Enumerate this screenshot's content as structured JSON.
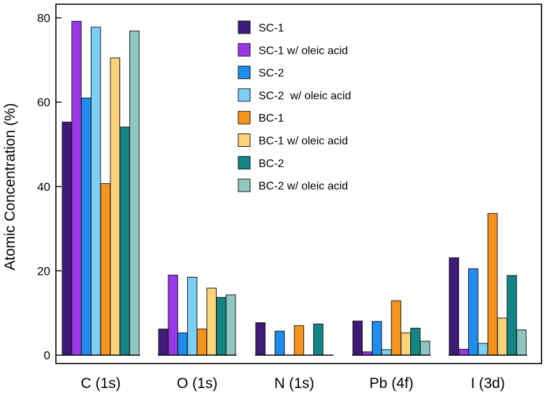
{
  "chart_data": {
    "type": "bar",
    "title": "",
    "xlabel": "",
    "ylabel": "Atomic Concentration (%)",
    "ylim": [
      0,
      82
    ],
    "yticks": [
      0,
      20,
      40,
      60,
      80
    ],
    "grid": false,
    "legend_position": "top-center",
    "categories": [
      "C (1s)",
      "O (1s)",
      "N (1s)",
      "Pb (4f)",
      "I (3d)"
    ],
    "series": [
      {
        "name": "SC-1",
        "color": "#3f1a78",
        "values": [
          55.3,
          6.2,
          7.7,
          8.1,
          23.1
        ]
      },
      {
        "name": "SC-1 w/ oleic acid",
        "color": "#9a38e8",
        "values": [
          79.2,
          19.0,
          0,
          0.8,
          1.4
        ]
      },
      {
        "name": "SC-2",
        "color": "#1f8ded",
        "values": [
          61.0,
          5.3,
          5.7,
          8.0,
          20.5
        ]
      },
      {
        "name": "SC-2  w/ oleic acid",
        "color": "#7dcff7",
        "values": [
          77.8,
          18.5,
          0,
          1.3,
          2.8
        ]
      },
      {
        "name": "BC-1",
        "color": "#f7941d",
        "values": [
          40.7,
          6.2,
          7.0,
          12.9,
          33.6
        ]
      },
      {
        "name": "BC-1 w/ oleic acid",
        "color": "#fcd27a",
        "values": [
          70.5,
          15.9,
          0,
          5.3,
          8.8
        ]
      },
      {
        "name": "BC-2",
        "color": "#138585",
        "values": [
          54.1,
          13.7,
          7.4,
          6.4,
          18.9
        ]
      },
      {
        "name": "BC-2 w/ oleic acid",
        "color": "#8fc7c0",
        "values": [
          76.9,
          14.3,
          0,
          3.3,
          6.0
        ]
      }
    ]
  }
}
